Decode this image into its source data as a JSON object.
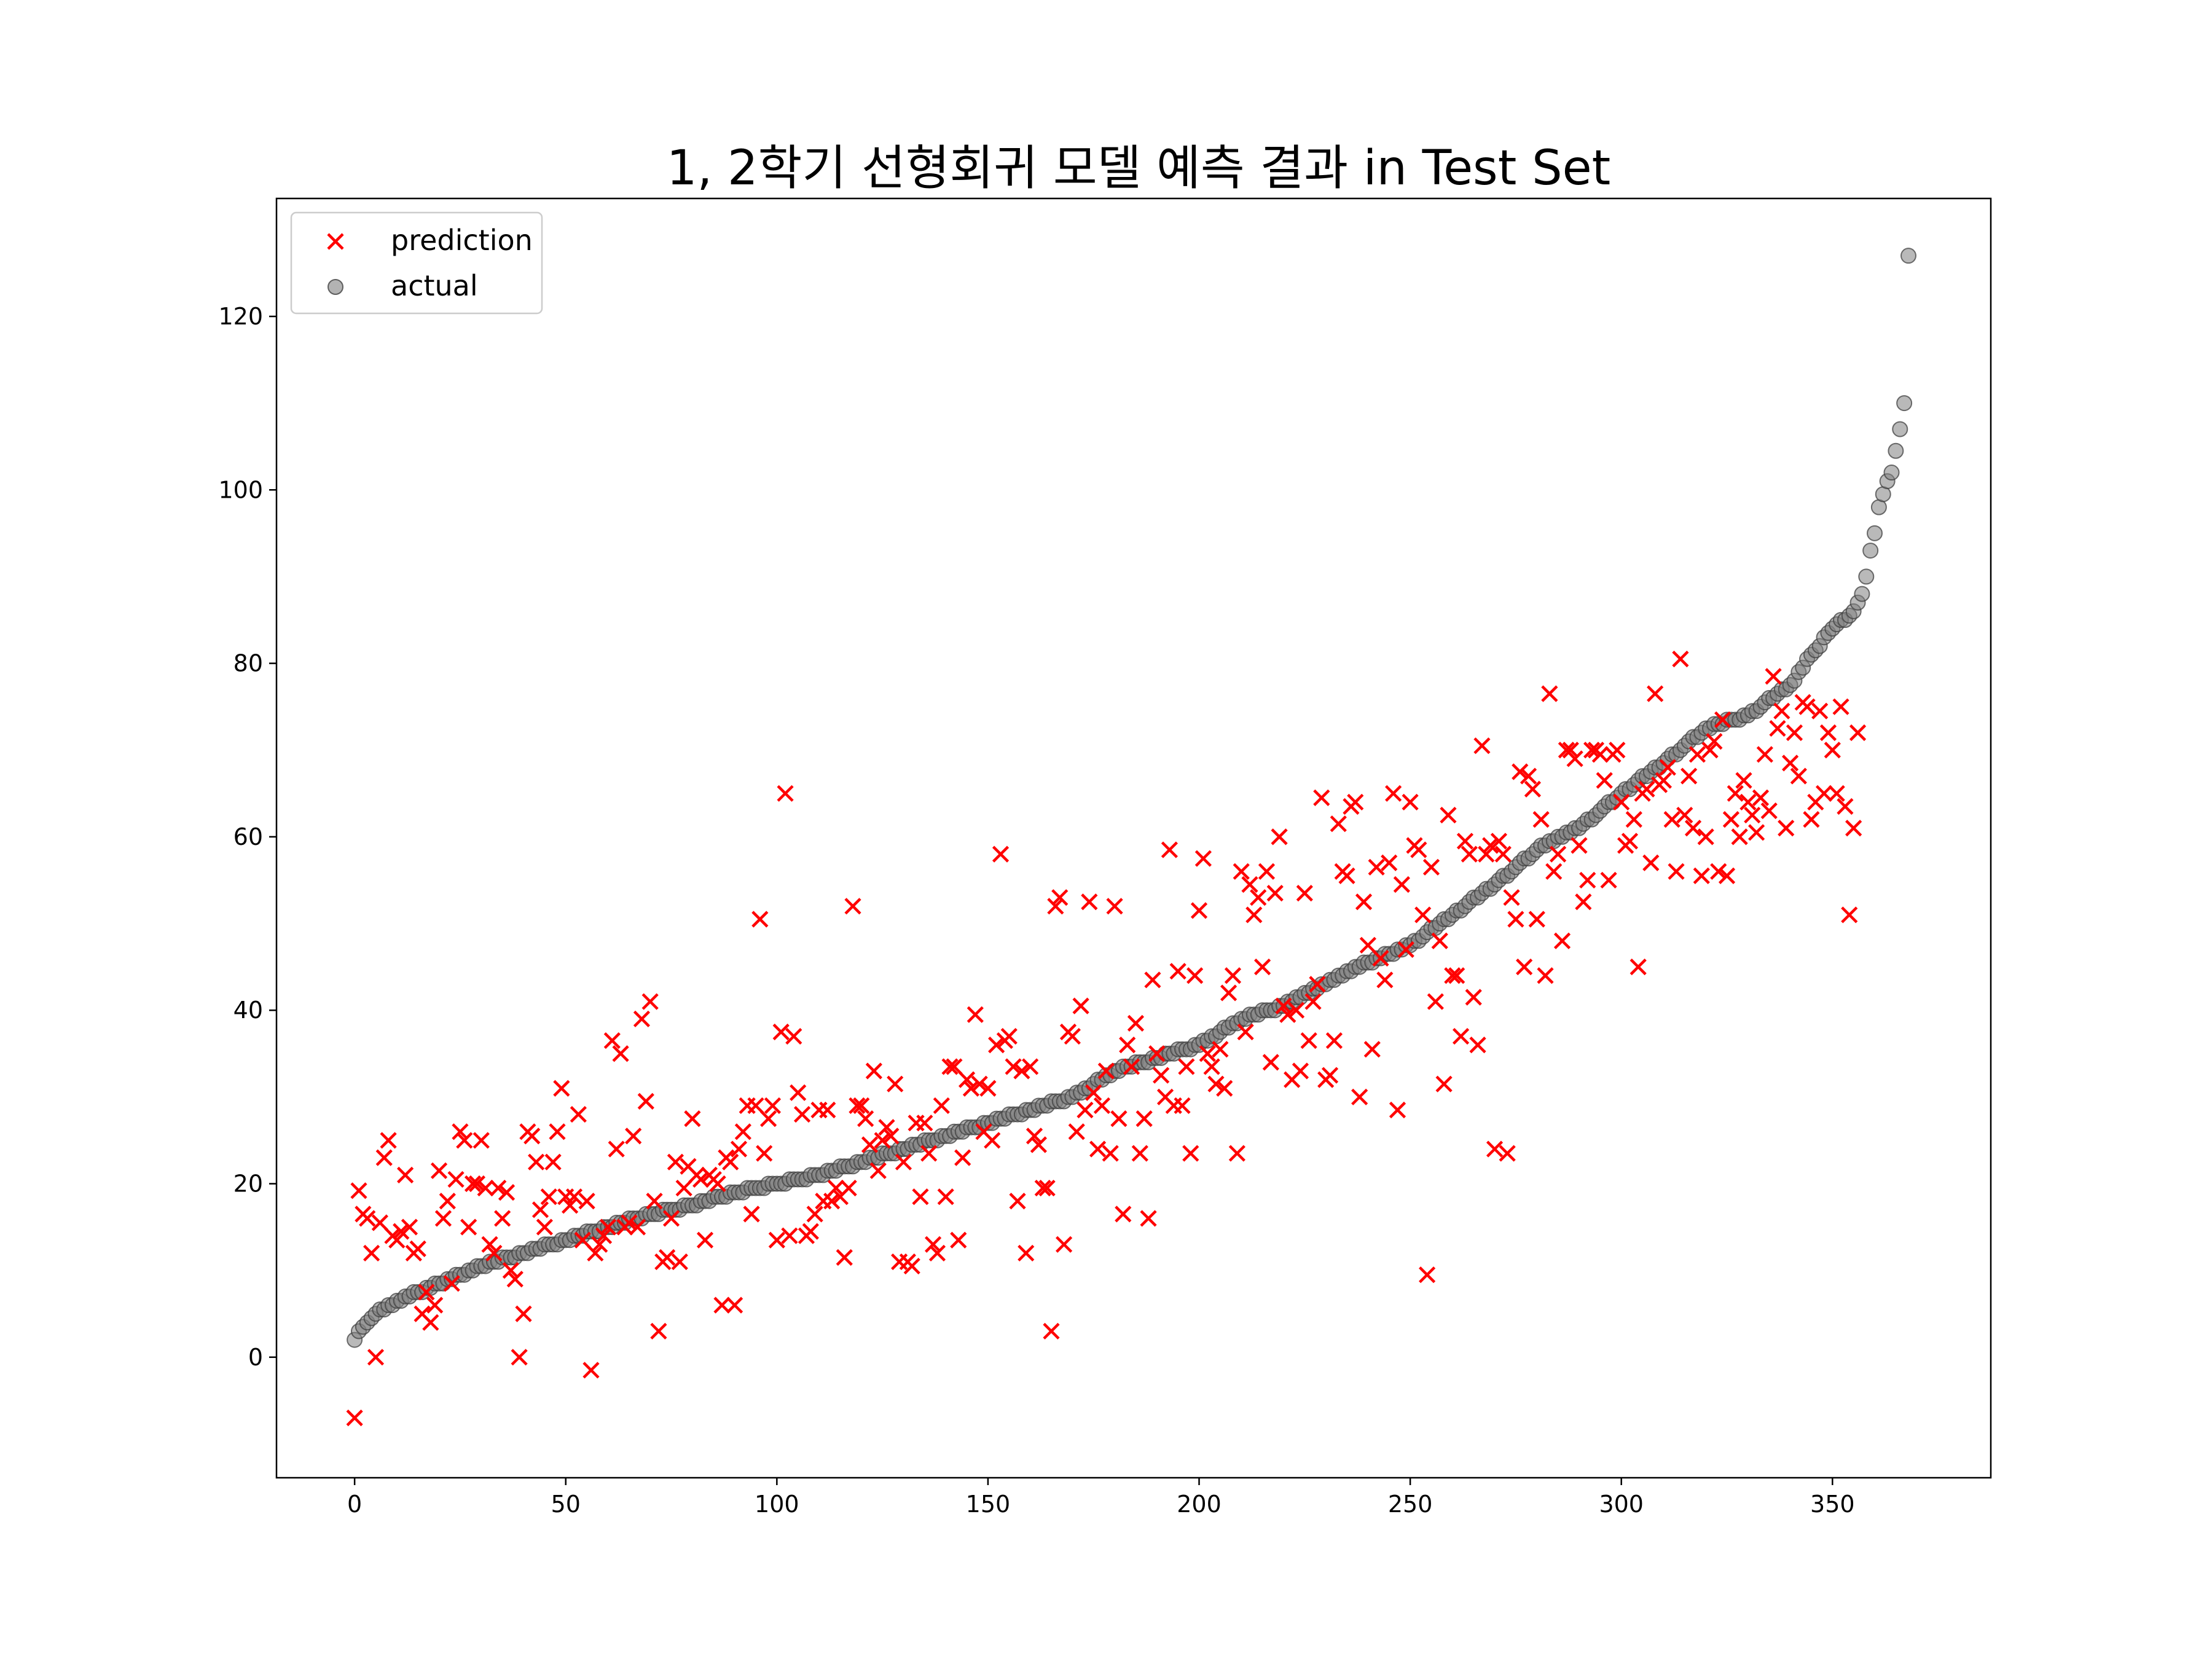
{
  "chart_data": {
    "type": "scatter",
    "title": "1, 2학기 선형회귀 모델 예측 결과 in Test Set",
    "xlabel": "",
    "ylabel": "",
    "xlim": [
      -18.5,
      387.5
    ],
    "ylim": [
      -13.9,
      133.6
    ],
    "x_ticks": [
      0,
      50,
      100,
      150,
      200,
      250,
      300,
      350
    ],
    "y_ticks": [
      0,
      20,
      40,
      60,
      80,
      100,
      120
    ],
    "grid": false,
    "legend_position": "top-left",
    "series": [
      {
        "name": "prediction",
        "marker": "x",
        "color": "#ff0000",
        "note_values": "sequence of predicted values, index i = 0..368",
        "y": [
          -7,
          19.2,
          16.5,
          16,
          12,
          0,
          15.5,
          23,
          25,
          14,
          13.5,
          14.5,
          21,
          15,
          12,
          12.5,
          5,
          7.5,
          4,
          6,
          21.5,
          16,
          18,
          8.5,
          20.5,
          26,
          25,
          15,
          20,
          20,
          25,
          19.5,
          13,
          12,
          19.5,
          16,
          19,
          10,
          9,
          0,
          5,
          26,
          25.5,
          22.5,
          17,
          15,
          18.5,
          22.5,
          26,
          31,
          18.5,
          17.5,
          18.5,
          28,
          13.5,
          18,
          -1.5,
          12,
          13,
          14,
          15,
          36.5,
          24,
          35,
          15,
          15.5,
          25.5,
          15,
          39,
          29.5,
          41,
          18,
          3,
          11,
          11.5,
          16,
          22.5,
          11,
          19.5,
          22,
          27.5,
          21,
          20.5,
          13.5,
          21,
          20.5,
          20,
          6,
          23,
          22.5,
          6,
          24,
          26,
          29,
          16.5,
          29,
          50.5,
          23.5,
          27.5,
          29,
          13.5,
          37.5,
          65,
          14,
          37,
          30.5,
          28,
          14,
          14.5,
          16.5,
          28.5,
          18,
          28.5,
          18,
          19.5,
          18.5,
          11.5,
          19.5,
          52,
          29,
          29,
          27.5,
          24.5,
          33,
          21.5,
          25,
          26.5,
          25.5,
          31.5,
          11,
          22.5,
          11,
          10.5,
          27,
          18.5,
          27,
          23.5,
          13,
          12,
          29,
          18.5,
          33.5,
          33.5,
          13.5,
          23,
          32,
          31,
          39.5,
          31.5,
          26,
          31,
          25,
          36,
          58,
          36.5,
          37,
          33.5,
          18,
          33,
          12,
          33.5,
          25.5,
          24.5,
          19.5,
          19.5,
          3,
          52,
          53,
          13,
          37.5,
          37,
          26,
          40.5,
          28.5,
          52.5,
          30.5,
          24,
          29,
          33,
          23.5,
          52,
          27.5,
          16.5,
          36,
          33.5,
          38.5,
          23.5,
          27.5,
          16,
          43.5,
          35,
          32.5,
          30,
          58.5,
          29,
          44.5,
          29,
          33.5,
          23.5,
          44,
          51.5,
          57.5,
          35,
          33.5,
          31.5,
          35.5,
          31,
          42,
          44,
          23.5,
          56,
          37.5,
          54.5,
          51,
          53,
          45,
          56,
          34,
          53.5,
          60,
          40.5,
          39.5,
          32,
          40,
          33,
          53.5,
          36.5,
          41,
          43,
          64.5,
          32,
          32.5,
          36.5,
          61.5,
          56,
          55.5,
          63.5,
          64,
          30,
          52.5,
          47.5,
          35.5,
          56.5,
          46,
          43.5,
          57,
          65,
          28.5,
          54.5,
          47,
          64,
          59,
          58.5,
          51,
          9.5,
          56.5,
          41,
          48,
          31.5,
          62.5,
          44,
          44,
          37,
          59.5,
          58,
          41.5,
          36,
          70.5,
          58,
          59,
          24,
          59.5,
          58,
          23.5,
          53,
          50.5,
          67.5,
          45,
          67,
          65.5,
          50.5,
          62,
          44,
          76.5,
          56,
          58,
          48,
          70,
          70,
          69,
          59,
          52.5,
          55,
          70,
          70,
          69.5,
          66.5,
          55,
          69.5,
          70,
          64,
          59,
          59.5,
          62,
          45,
          65,
          65.5,
          57,
          76.5,
          66,
          66.5,
          68,
          62,
          56,
          80.5,
          62.5,
          67,
          61,
          69.5,
          55.5,
          60,
          70,
          71,
          56,
          73.5,
          55.5,
          62,
          65,
          60,
          66.5,
          64,
          62.5,
          60.5,
          64.5,
          69.5,
          63,
          78.5,
          72.5,
          74.5,
          61,
          68.5,
          72,
          67,
          75.5,
          75,
          62,
          64,
          74.5,
          65,
          72,
          70,
          65,
          75,
          63.5,
          51,
          61,
          72
        ]
      },
      {
        "name": "actual",
        "marker": "o",
        "color": "#808080",
        "breakpoints": [
          [
            0,
            2
          ],
          [
            2,
            3.5
          ],
          [
            5,
            5
          ],
          [
            10,
            6.5
          ],
          [
            15,
            7.5
          ],
          [
            20,
            8.5
          ],
          [
            30,
            10.5
          ],
          [
            40,
            12
          ],
          [
            50,
            13.5
          ],
          [
            60,
            15
          ],
          [
            70,
            16.5
          ],
          [
            80,
            17.5
          ],
          [
            90,
            19
          ],
          [
            100,
            20
          ],
          [
            110,
            21
          ],
          [
            120,
            22.5
          ],
          [
            130,
            24
          ],
          [
            140,
            25.5
          ],
          [
            150,
            27
          ],
          [
            160,
            28.5
          ],
          [
            170,
            30
          ],
          [
            180,
            33
          ],
          [
            190,
            34.5
          ],
          [
            200,
            36
          ],
          [
            210,
            39
          ],
          [
            220,
            40.5
          ],
          [
            230,
            43
          ],
          [
            240,
            45.5
          ],
          [
            250,
            47.5
          ],
          [
            260,
            51
          ],
          [
            270,
            54.5
          ],
          [
            280,
            58.5
          ],
          [
            290,
            61
          ],
          [
            300,
            65
          ],
          [
            310,
            68.5
          ],
          [
            320,
            72.5
          ],
          [
            330,
            74
          ],
          [
            340,
            77.5
          ],
          [
            345,
            81
          ],
          [
            350,
            84
          ],
          [
            355,
            86
          ],
          [
            357,
            88
          ],
          [
            358,
            90
          ],
          [
            359,
            93
          ],
          [
            360,
            95
          ],
          [
            361,
            98
          ],
          [
            363,
            101
          ],
          [
            364,
            102
          ],
          [
            366,
            107
          ],
          [
            367,
            110
          ],
          [
            368,
            127
          ]
        ]
      }
    ]
  }
}
